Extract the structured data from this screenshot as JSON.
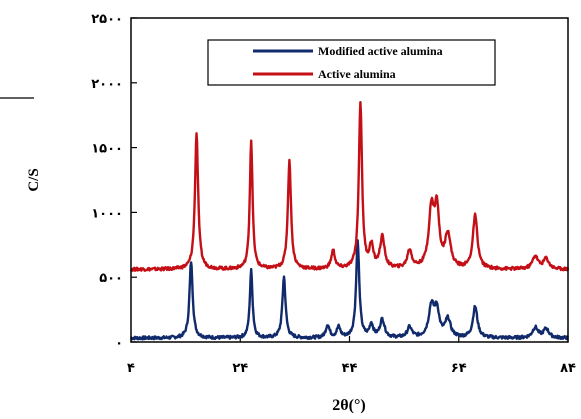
{
  "chart_data": {
    "type": "line",
    "xlabel": "2θ(°)",
    "ylabel": "C/S",
    "xlim": [
      4,
      84
    ],
    "ylim": [
      0,
      2500
    ],
    "x_ticks": [
      {
        "value": 4,
        "label": "۴"
      },
      {
        "value": 24,
        "label": "۲۴"
      },
      {
        "value": 44,
        "label": "۴۴"
      },
      {
        "value": 64,
        "label": "۶۴"
      },
      {
        "value": 84,
        "label": "۸۴"
      }
    ],
    "y_ticks": [
      {
        "value": 0,
        "label": "۰"
      },
      {
        "value": 500,
        "label": "۵۰۰"
      },
      {
        "value": 1000,
        "label": "۱۰۰۰"
      },
      {
        "value": 1500,
        "label": "۱۵۰۰"
      },
      {
        "value": 2000,
        "label": "۲۰۰۰"
      },
      {
        "value": 2500,
        "label": "۲۵۰۰"
      }
    ],
    "grid": false,
    "legend_position": "top-right",
    "series": [
      {
        "name": "Modified active alumina",
        "color": "#102a6b",
        "baseline": 30,
        "peaks": [
          [
            15,
            590,
            0.35
          ],
          [
            26,
            520,
            0.3
          ],
          [
            32,
            470,
            0.35
          ],
          [
            40,
            100,
            0.4
          ],
          [
            42,
            80,
            0.4
          ],
          [
            45.5,
            740,
            0.35
          ],
          [
            48,
            100,
            0.4
          ],
          [
            50,
            140,
            0.5
          ],
          [
            55,
            80,
            0.5
          ],
          [
            59,
            240,
            0.6
          ],
          [
            60,
            200,
            0.5
          ],
          [
            62,
            140,
            0.6
          ],
          [
            67,
            240,
            0.5
          ],
          [
            78,
            80,
            0.6
          ],
          [
            80,
            70,
            0.6
          ]
        ]
      },
      {
        "name": "Active alumina",
        "color": "#c40f16",
        "baseline": 560,
        "peaks": [
          [
            16,
            1050,
            0.35
          ],
          [
            26,
            990,
            0.3
          ],
          [
            33,
            830,
            0.35
          ],
          [
            41,
            140,
            0.4
          ],
          [
            46,
            1280,
            0.35
          ],
          [
            48,
            170,
            0.4
          ],
          [
            50,
            240,
            0.5
          ],
          [
            55,
            140,
            0.5
          ],
          [
            59,
            440,
            0.6
          ],
          [
            60,
            420,
            0.5
          ],
          [
            62,
            260,
            0.6
          ],
          [
            67,
            410,
            0.5
          ],
          [
            78,
            100,
            0.6
          ],
          [
            80,
            80,
            0.6
          ]
        ]
      }
    ]
  }
}
